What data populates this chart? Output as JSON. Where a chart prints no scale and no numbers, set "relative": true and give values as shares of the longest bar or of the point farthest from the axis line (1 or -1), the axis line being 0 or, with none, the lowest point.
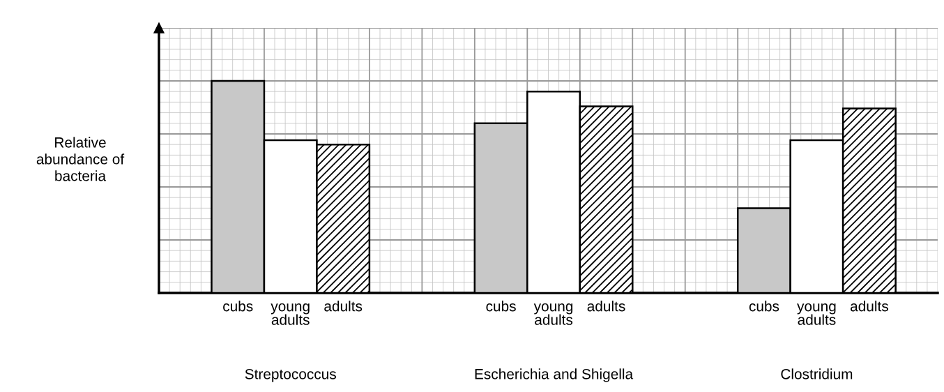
{
  "chart_data": {
    "type": "bar",
    "relative": true,
    "grid": true,
    "ylabel": "Relative\nabundance of\nbacteria",
    "categories": [
      "Streptococcus",
      "Escherichia and Shigella",
      "Clostridium"
    ],
    "series": [
      {
        "name": "cubs",
        "color": "#c8c8c8",
        "values": [
          1.0,
          0.8,
          0.4
        ]
      },
      {
        "name": "young\nadults",
        "color": "#ffffff",
        "values": [
          0.72,
          0.95,
          0.72
        ]
      },
      {
        "name": "adults",
        "color": "#ffffff",
        "values": [
          0.7,
          0.88,
          0.87
        ]
      }
    ]
  }
}
